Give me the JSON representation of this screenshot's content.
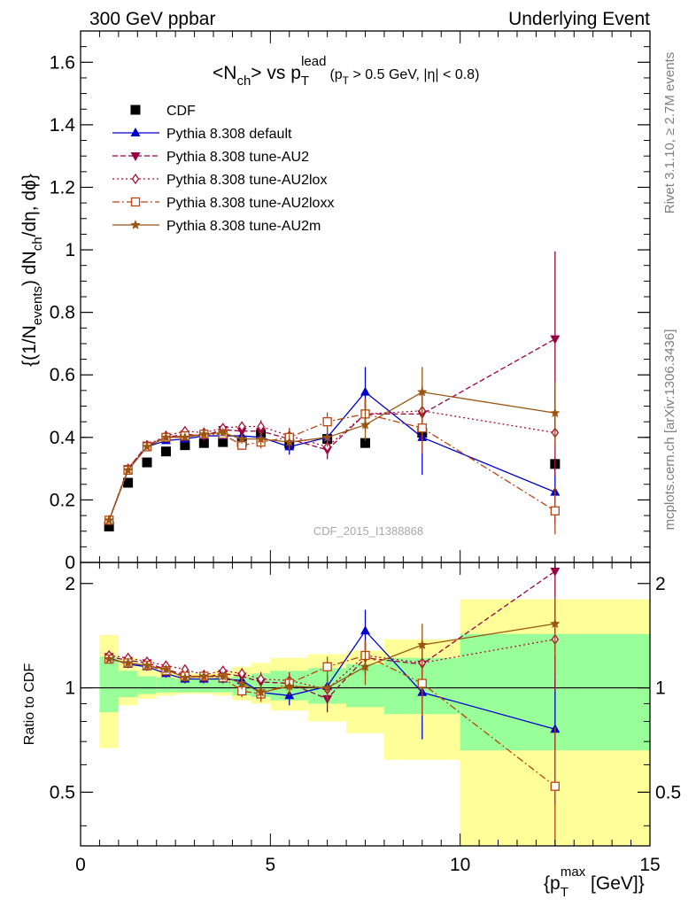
{
  "header": {
    "left": "300 GeV ppbar",
    "right": "Underlying Event"
  },
  "main_title": {
    "pre": "<N",
    "sub1": "ch",
    "mid": "> vs p",
    "sub2": "T",
    "sup2": "lead",
    "cut_pre": "(p",
    "cut_sub": "T",
    "cut_post": " > 0.5 GeV, |η| < 0.8)"
  },
  "ylabel_top": {
    "p1": "{(1/N",
    "s1": "events",
    "p2": ") dN",
    "s2": "ch",
    "p3": "/dη, dϕ}"
  },
  "ylabel_bottom": "Ratio to CDF",
  "xlabel": {
    "pre": "{p",
    "sub": "T",
    "sup": "max",
    "post": " [GeV]}"
  },
  "side_labels": {
    "rivet": "Rivet 3.1.10, ≥ 2.7M events",
    "mcplots": "mcplots.cern.ch [arXiv:1306.3436]"
  },
  "watermark": "CDF_2015_I1388868",
  "colors": {
    "cdf": "#000000",
    "default": "#0000cc",
    "au2": "#990044",
    "au2lox": "#aa1133",
    "au2loxx": "#bb4411",
    "au2m": "#995511",
    "band_yellow": "#ffff99",
    "band_green": "#99ff99"
  },
  "chart_data": [
    {
      "type": "scatter",
      "panel": "main",
      "xlim": [
        0,
        15
      ],
      "ylim": [
        0,
        1.7
      ],
      "x_ticks": [
        0,
        5,
        10,
        15
      ],
      "y_ticks": [
        0.2,
        0.4,
        0.6,
        0.8,
        1,
        1.2,
        1.4,
        1.6
      ],
      "y_tick_labels": [
        "0.2",
        "0.4",
        "0.6",
        "0.8",
        "1",
        "1.2",
        "1.4",
        "1.6"
      ],
      "extra_y_tick_label": "0",
      "legend": "top-left",
      "x": [
        0.75,
        1.25,
        1.75,
        2.25,
        2.75,
        3.25,
        3.75,
        4.25,
        4.75,
        5.5,
        6.5,
        7.5,
        9.0,
        12.5
      ],
      "series": [
        {
          "name": "CDF",
          "key": "cdf",
          "marker": "square",
          "line": "none",
          "values": [
            0.115,
            0.255,
            0.32,
            0.355,
            0.375,
            0.382,
            0.385,
            0.385,
            0.41,
            0.38,
            0.395,
            0.382,
            0.415,
            0.315
          ],
          "errors": [
            0.005,
            0.005,
            0.005,
            0.005,
            0.005,
            0.005,
            0.005,
            0.005,
            0.01,
            0.01,
            0.01,
            0.01,
            0.015,
            0.02
          ]
        },
        {
          "name": "Pythia 8.308 default",
          "key": "default",
          "marker": "triangle-up",
          "line": "solid",
          "values": [
            0.135,
            0.295,
            0.37,
            0.39,
            0.395,
            0.405,
            0.405,
            0.405,
            0.4,
            0.37,
            0.4,
            0.545,
            0.4,
            0.225
          ],
          "errors": [
            0.005,
            0.008,
            0.008,
            0.01,
            0.01,
            0.012,
            0.012,
            0.015,
            0.02,
            0.025,
            0.03,
            0.08,
            0.12,
            0.1
          ]
        },
        {
          "name": "Pythia 8.308 tune-AU2",
          "key": "au2",
          "marker": "triangle-down",
          "line": "dashed",
          "values": [
            0.135,
            0.3,
            0.375,
            0.4,
            0.41,
            0.405,
            0.425,
            0.42,
            0.42,
            0.395,
            0.36,
            0.475,
            0.475,
            0.715
          ],
          "errors": [
            0.005,
            0.008,
            0.008,
            0.01,
            0.01,
            0.012,
            0.012,
            0.015,
            0.02,
            0.025,
            0.03,
            0.05,
            0.08,
            0.28
          ]
        },
        {
          "name": "Pythia 8.308 tune-AU2lox",
          "key": "au2lox",
          "marker": "diamond-open",
          "line": "dotted",
          "values": [
            0.135,
            0.3,
            0.375,
            0.405,
            0.42,
            0.415,
            0.43,
            0.435,
            0.435,
            0.405,
            0.37,
            0.475,
            0.485,
            0.415
          ],
          "errors": [
            0.005,
            0.008,
            0.008,
            0.01,
            0.01,
            0.012,
            0.012,
            0.015,
            0.02,
            0.025,
            0.03,
            0.05,
            0.08,
            0.14
          ]
        },
        {
          "name": "Pythia 8.308 tune-AU2loxx",
          "key": "au2loxx",
          "marker": "square-open",
          "line": "dashdot",
          "values": [
            0.135,
            0.295,
            0.37,
            0.4,
            0.405,
            0.41,
            0.41,
            0.375,
            0.385,
            0.4,
            0.45,
            0.475,
            0.43,
            0.165
          ],
          "errors": [
            0.005,
            0.008,
            0.008,
            0.01,
            0.01,
            0.012,
            0.012,
            0.015,
            0.02,
            0.025,
            0.03,
            0.05,
            0.08,
            0.075
          ]
        },
        {
          "name": "Pythia 8.308 tune-AU2m",
          "key": "au2m",
          "marker": "star",
          "line": "solid",
          "values": [
            0.135,
            0.295,
            0.37,
            0.4,
            0.4,
            0.41,
            0.415,
            0.395,
            0.395,
            0.385,
            0.4,
            0.44,
            0.545,
            0.478
          ],
          "errors": [
            0.005,
            0.008,
            0.008,
            0.01,
            0.01,
            0.012,
            0.012,
            0.015,
            0.02,
            0.025,
            0.03,
            0.05,
            0.08,
            0.1
          ]
        }
      ]
    },
    {
      "type": "scatter",
      "panel": "ratio",
      "ylabel": "Ratio to CDF",
      "xlim": [
        0,
        15
      ],
      "ylim": [
        0.35,
        2.3
      ],
      "log_y": true,
      "x_ticks": [
        0,
        5,
        10,
        15
      ],
      "x_tick_labels": [
        "0",
        "5",
        "10",
        "15"
      ],
      "y_ticks": [
        0.5,
        1,
        2
      ],
      "y_tick_labels": [
        "0.5",
        "1",
        "2"
      ],
      "reference_line": 1,
      "bins": [
        [
          0.5,
          1.0
        ],
        [
          1.0,
          1.5
        ],
        [
          1.5,
          2.0
        ],
        [
          2.0,
          2.5
        ],
        [
          2.5,
          3.0
        ],
        [
          3.0,
          3.5
        ],
        [
          3.5,
          4.0
        ],
        [
          4.0,
          4.5
        ],
        [
          4.5,
          5.0
        ],
        [
          5.0,
          6.0
        ],
        [
          6.0,
          7.0
        ],
        [
          7.0,
          8.0
        ],
        [
          8.0,
          10.0
        ],
        [
          10.0,
          15.0
        ]
      ],
      "band_yellow": [
        [
          0.67,
          1.42
        ],
        [
          0.89,
          1.22
        ],
        [
          0.93,
          1.14
        ],
        [
          0.95,
          1.12
        ],
        [
          0.96,
          1.1
        ],
        [
          0.96,
          1.1
        ],
        [
          0.95,
          1.12
        ],
        [
          0.92,
          1.15
        ],
        [
          0.9,
          1.18
        ],
        [
          0.86,
          1.22
        ],
        [
          0.8,
          1.25
        ],
        [
          0.74,
          1.28
        ],
        [
          0.62,
          1.38
        ],
        [
          0.33,
          1.8
        ]
      ],
      "band_green": [
        [
          0.85,
          1.23
        ],
        [
          0.94,
          1.12
        ],
        [
          0.96,
          1.08
        ],
        [
          0.97,
          1.07
        ],
        [
          0.97,
          1.06
        ],
        [
          0.97,
          1.06
        ],
        [
          0.97,
          1.07
        ],
        [
          0.95,
          1.08
        ],
        [
          0.94,
          1.1
        ],
        [
          0.92,
          1.12
        ],
        [
          0.9,
          1.14
        ],
        [
          0.88,
          1.17
        ],
        [
          0.84,
          1.22
        ],
        [
          0.66,
          1.43
        ]
      ],
      "x": [
        0.75,
        1.25,
        1.75,
        2.25,
        2.75,
        3.25,
        3.75,
        4.25,
        4.75,
        5.5,
        6.5,
        7.5,
        9.0,
        12.5
      ],
      "series": [
        {
          "name": "Pythia 8.308 default",
          "key": "default",
          "marker": "triangle-up",
          "line": "solid",
          "values": [
            1.22,
            1.17,
            1.15,
            1.1,
            1.06,
            1.06,
            1.06,
            1.05,
            0.97,
            0.95,
            1.01,
            1.46,
            0.97,
            0.76
          ],
          "errors": [
            0.02,
            0.03,
            0.03,
            0.03,
            0.03,
            0.03,
            0.03,
            0.04,
            0.05,
            0.06,
            0.08,
            0.22,
            0.26,
            0.3
          ]
        },
        {
          "name": "Pythia 8.308 tune-AU2",
          "key": "au2",
          "marker": "triangle-down",
          "line": "dashed",
          "values": [
            1.23,
            1.2,
            1.18,
            1.13,
            1.09,
            1.07,
            1.1,
            1.08,
            1.04,
            1.03,
            0.93,
            1.22,
            1.17,
            2.17
          ],
          "errors": [
            0.02,
            0.03,
            0.03,
            0.03,
            0.03,
            0.03,
            0.03,
            0.04,
            0.05,
            0.06,
            0.08,
            0.13,
            0.2,
            0.9
          ]
        },
        {
          "name": "Pythia 8.308 tune-AU2lox",
          "key": "au2lox",
          "marker": "diamond-open",
          "line": "dotted",
          "values": [
            1.24,
            1.22,
            1.19,
            1.16,
            1.13,
            1.09,
            1.12,
            1.1,
            1.06,
            1.05,
            0.99,
            1.24,
            1.18,
            1.38
          ],
          "errors": [
            0.02,
            0.03,
            0.03,
            0.03,
            0.03,
            0.03,
            0.03,
            0.04,
            0.05,
            0.06,
            0.08,
            0.13,
            0.2,
            0.4
          ]
        },
        {
          "name": "Pythia 8.308 tune-AU2loxx",
          "key": "au2loxx",
          "marker": "square-open",
          "line": "dashdot",
          "values": [
            1.21,
            1.18,
            1.16,
            1.12,
            1.08,
            1.08,
            1.07,
            0.98,
            0.96,
            1.03,
            1.15,
            1.24,
            1.03,
            0.52
          ],
          "errors": [
            0.02,
            0.03,
            0.03,
            0.03,
            0.03,
            0.03,
            0.03,
            0.04,
            0.05,
            0.06,
            0.08,
            0.13,
            0.2,
            0.25
          ]
        },
        {
          "name": "Pythia 8.308 tune-AU2m",
          "key": "au2m",
          "marker": "star",
          "line": "solid",
          "values": [
            1.21,
            1.18,
            1.16,
            1.13,
            1.07,
            1.08,
            1.08,
            1.03,
            0.97,
            1.01,
            1.0,
            1.15,
            1.33,
            1.53
          ],
          "errors": [
            0.02,
            0.03,
            0.03,
            0.03,
            0.03,
            0.03,
            0.03,
            0.04,
            0.05,
            0.06,
            0.08,
            0.13,
            0.2,
            0.3
          ]
        }
      ]
    }
  ]
}
